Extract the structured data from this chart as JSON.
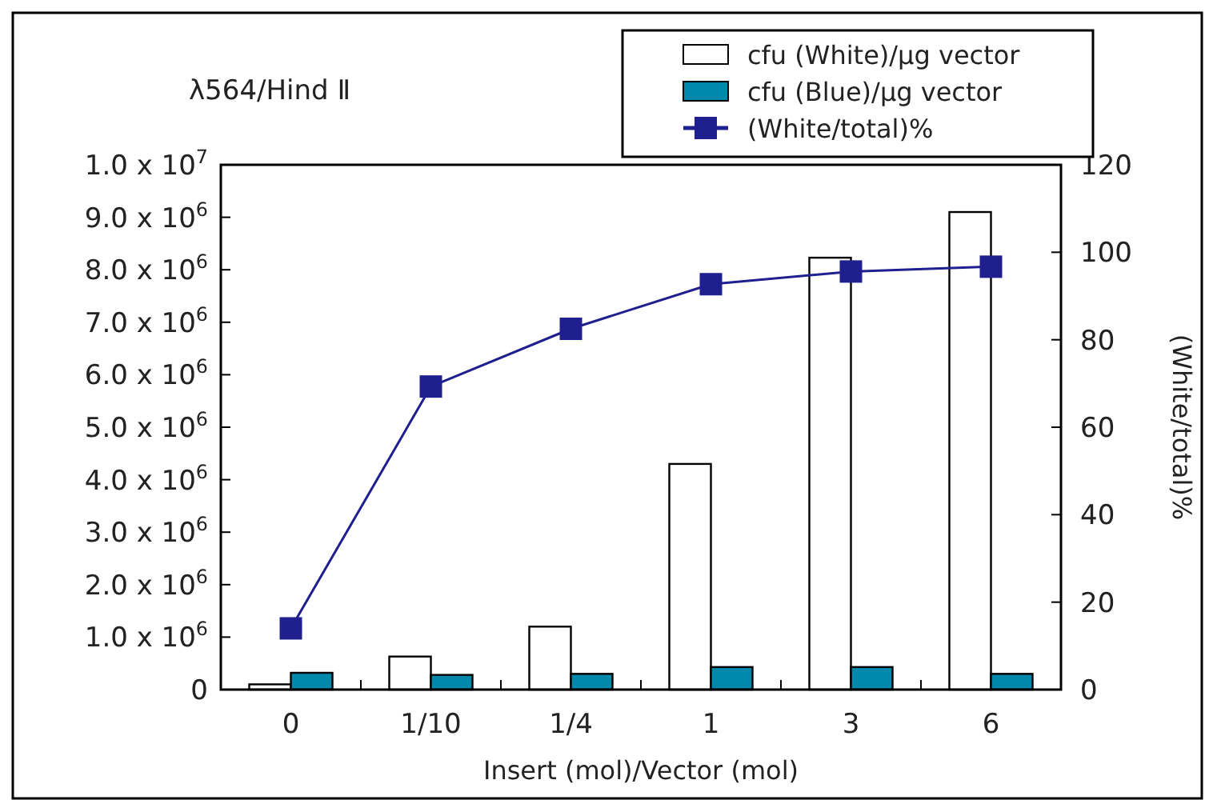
{
  "chart_data": {
    "type": "bar",
    "title": "λ564/Hind Ⅱ",
    "xlabel": "Insert (mol)/Vector (mol)",
    "y2label": "(White/total)%",
    "categories": [
      "0",
      "1/10",
      "1/4",
      "1",
      "3",
      "6"
    ],
    "series": [
      {
        "name": "cfu (White)/μg vector",
        "color": "#ffffff",
        "values": [
          100000,
          630000,
          1200000,
          4300000,
          8230000,
          9100000
        ]
      },
      {
        "name": "cfu (Blue)/μg vector",
        "color": "#0088aa",
        "values": [
          320000,
          280000,
          300000,
          430000,
          430000,
          300000
        ]
      },
      {
        "name": "(White/total)%",
        "type": "line",
        "axis": "y2",
        "color": "#1f1f8f",
        "marker": "square",
        "values": [
          14,
          69.3,
          82.5,
          92.7,
          95.6,
          96.7
        ]
      }
    ],
    "ylim": [
      0,
      10000000
    ],
    "yticks": [
      0,
      {
        "value": 1000000,
        "label": "1.0 x 10$^{6}$"
      },
      {
        "value": 2000000,
        "label": "2.0 x 10$^{6}$"
      },
      {
        "value": 3000000,
        "label": "3.0 x 10$^{6}$"
      },
      {
        "value": 4000000,
        "label": "4.0 x 10$^{6}$"
      },
      {
        "value": 5000000,
        "label": "5.0 x 10$^{6}$"
      },
      {
        "value": 6000000,
        "label": "6.0 x 10$^{6}$"
      },
      {
        "value": 7000000,
        "label": "7.0 x 10$^{6}$"
      },
      {
        "value": 8000000,
        "label": "8.0 x 10$^{6}$"
      },
      {
        "value": 9000000,
        "label": "9.0 x 10$^{6}$"
      },
      {
        "value": 10000000,
        "label": "1.0 x 10$^{7}$"
      }
    ],
    "y2lim": [
      0,
      120
    ],
    "y2ticks": [
      0,
      20,
      40,
      60,
      80,
      100,
      120
    ],
    "legend": "top right",
    "grid": false
  }
}
